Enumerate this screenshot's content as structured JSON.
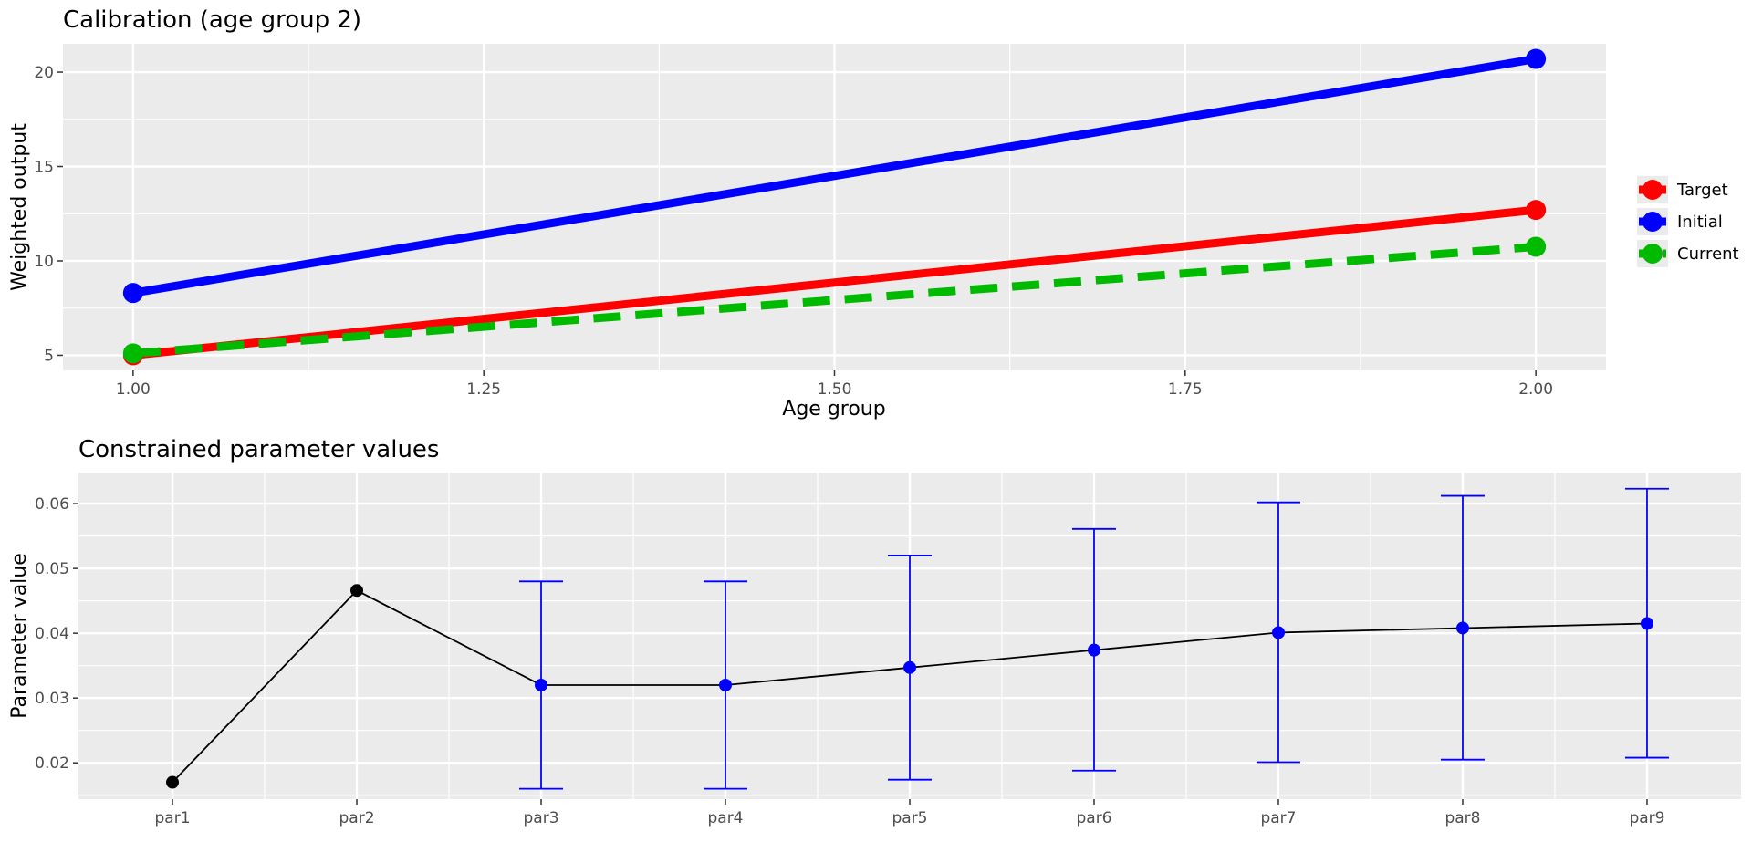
{
  "chart_data": [
    {
      "type": "line",
      "title": "Calibration (age group 2)",
      "xlabel": "Age group",
      "ylabel": "Weighted output",
      "x": [
        1.0,
        2.0
      ],
      "xlim": [
        0.95,
        2.05
      ],
      "ylim": [
        4.2,
        21.5
      ],
      "xticks": [
        1.0,
        1.25,
        1.5,
        1.75,
        2.0
      ],
      "xtick_labels": [
        "1.00",
        "1.25",
        "1.50",
        "1.75",
        "2.00"
      ],
      "yticks": [
        5,
        10,
        15,
        20
      ],
      "ytick_labels": [
        "5",
        "10",
        "15",
        "20"
      ],
      "grid": true,
      "legend_position": "right",
      "series": [
        {
          "name": "Target",
          "values": [
            5.0,
            12.7
          ],
          "color": "#ff0000",
          "style": "solid"
        },
        {
          "name": "Initial",
          "values": [
            8.3,
            20.7
          ],
          "color": "#0000ff",
          "style": "solid"
        },
        {
          "name": "Current",
          "values": [
            5.1,
            10.75
          ],
          "color": "#00ba00",
          "style": "dashed"
        }
      ]
    },
    {
      "type": "line",
      "title": "Constrained parameter values",
      "xlabel": "",
      "ylabel": "Parameter value",
      "categories": [
        "par1",
        "par2",
        "par3",
        "par4",
        "par5",
        "par6",
        "par7",
        "par8",
        "par9"
      ],
      "ylim": [
        0.0144,
        0.0648
      ],
      "yticks": [
        0.02,
        0.03,
        0.04,
        0.05,
        0.06
      ],
      "ytick_labels": [
        "0.02",
        "0.03",
        "0.04",
        "0.05",
        "0.06"
      ],
      "grid": true,
      "values": [
        0.017,
        0.0466,
        0.032,
        0.032,
        0.0347,
        0.0374,
        0.0401,
        0.0408,
        0.0415
      ],
      "error_low": [
        null,
        null,
        0.016,
        0.016,
        0.0174,
        0.0188,
        0.0201,
        0.0205,
        0.0208
      ],
      "error_high": [
        null,
        null,
        0.048,
        0.048,
        0.052,
        0.0561,
        0.0602,
        0.0612,
        0.0623
      ],
      "point_colors": [
        "#000000",
        "#000000",
        "#0000ff",
        "#0000ff",
        "#0000ff",
        "#0000ff",
        "#0000ff",
        "#0000ff",
        "#0000ff"
      ],
      "line_color": "#000000",
      "errorbar_color": "#0000ff"
    }
  ]
}
